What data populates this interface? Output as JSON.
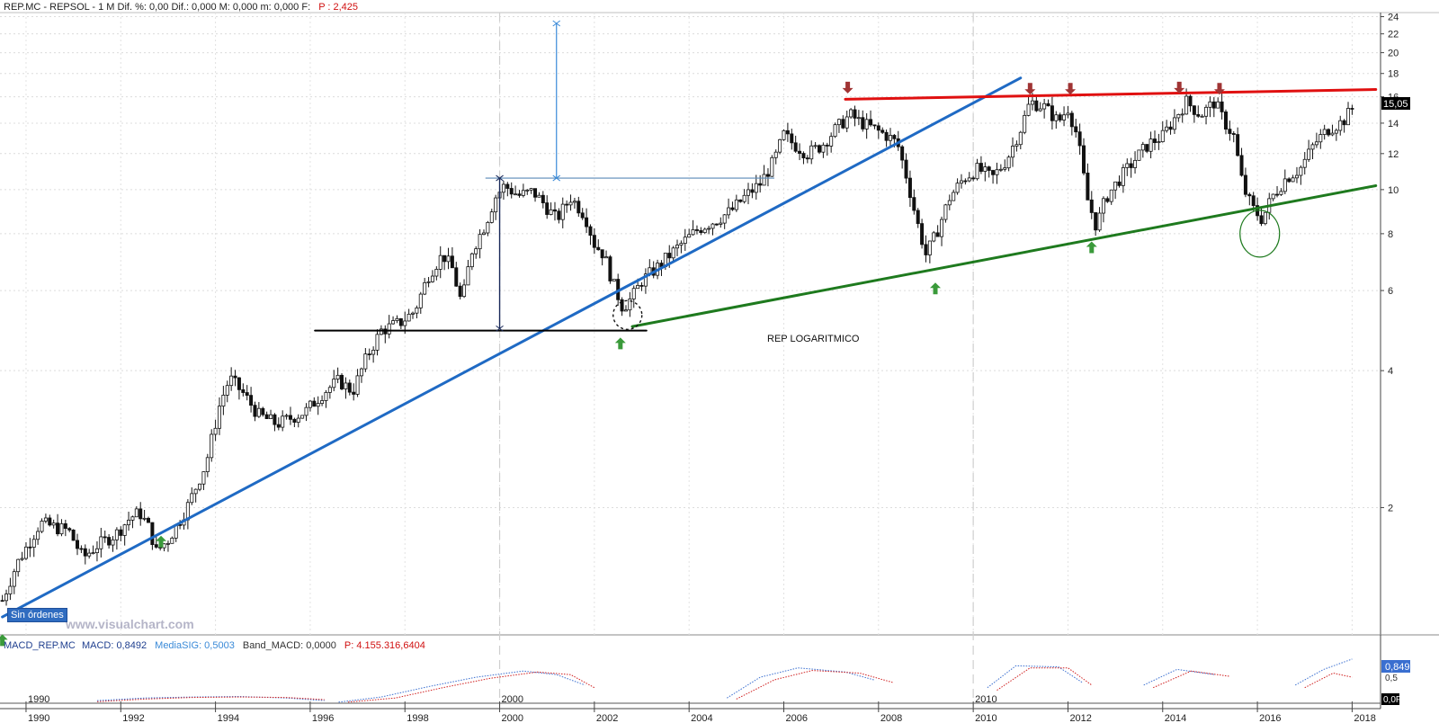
{
  "header": {
    "ticker_line": "REP.MC - REPSOL - 1 M  Dif. %: 0,00  Dif.: 0,000  M: 0,000  m: 0,000  F:",
    "p_label": "P : 2,425"
  },
  "annotation_text": "REP LOGARITMICO",
  "watermark": "www.visualchart.com",
  "orders_button": "Sin órdenes",
  "last_price_label": "15,05",
  "macd_header": {
    "name": "MACD_REP.MC",
    "macd": "MACD: 0,8492",
    "sig": "MediaSIG: 0,5003",
    "band": "Band_MACD: 0,0000",
    "p": "P: 4.155.316,6404"
  },
  "macd_value_labels": [
    "0,849",
    "0,5",
    "0,0F"
  ],
  "macd_decade_labels": [
    {
      "label": "1990",
      "year": 1990
    },
    {
      "label": "2000",
      "year": 2000
    },
    {
      "label": "2010",
      "year": 2010
    }
  ],
  "colors": {
    "blue_trend": "#1f6ac4",
    "green_trend": "#1e7a1e",
    "red_resistance": "#e01010",
    "support_black": "#000000",
    "arrow_up": "#3a9a3a",
    "arrow_down": "#a03434",
    "macd_blue": "#3a6fd0",
    "macd_red": "#d02020"
  },
  "chart_data": {
    "type": "candlestick",
    "scale": "log",
    "x_range": [
      1989.45,
      2018.6
    ],
    "ylim": [
      1.05,
      24.5
    ],
    "y_ticks": [
      {
        "value": 2,
        "label": "2"
      },
      {
        "value": 4,
        "label": "4"
      },
      {
        "value": 6,
        "label": "6"
      },
      {
        "value": 8,
        "label": "8"
      },
      {
        "value": 10,
        "label": "10"
      },
      {
        "value": 12,
        "label": "12"
      },
      {
        "value": 14,
        "label": "14"
      },
      {
        "value": 16,
        "label": "16"
      },
      {
        "value": 18,
        "label": "18"
      },
      {
        "value": 20,
        "label": "20"
      },
      {
        "value": 22,
        "label": "22"
      },
      {
        "value": 24,
        "label": "24"
      }
    ],
    "x_ticks": [
      {
        "year": 1990,
        "label": "1990"
      },
      {
        "year": 1992,
        "label": "1992"
      },
      {
        "year": 1994,
        "label": "1994"
      },
      {
        "year": 1996,
        "label": "1996"
      },
      {
        "year": 1998,
        "label": "1998"
      },
      {
        "year": 2000,
        "label": "2000"
      },
      {
        "year": 2002,
        "label": "2002"
      },
      {
        "year": 2004,
        "label": "2004"
      },
      {
        "year": 2006,
        "label": "2006"
      },
      {
        "year": 2008,
        "label": "2008"
      },
      {
        "year": 2010,
        "label": "2010"
      },
      {
        "year": 2012,
        "label": "2012"
      },
      {
        "year": 2014,
        "label": "2014"
      },
      {
        "year": 2016,
        "label": "2016"
      },
      {
        "year": 2018,
        "label": "2018"
      }
    ],
    "decade_gridlines": [
      2000,
      2010
    ],
    "price_path": [
      [
        1989.5,
        1.25
      ],
      [
        1989.8,
        1.5
      ],
      [
        1990.3,
        1.85
      ],
      [
        1990.7,
        1.8
      ],
      [
        1990.9,
        1.78
      ],
      [
        1991.2,
        1.55
      ],
      [
        1991.5,
        1.65
      ],
      [
        1991.9,
        1.75
      ],
      [
        1992.2,
        1.9
      ],
      [
        1992.4,
        1.95
      ],
      [
        1992.6,
        1.8
      ],
      [
        1992.75,
        1.6
      ],
      [
        1993.0,
        1.7
      ],
      [
        1993.4,
        2.0
      ],
      [
        1993.8,
        2.5
      ],
      [
        1994.1,
        3.4
      ],
      [
        1994.3,
        3.85
      ],
      [
        1994.6,
        3.55
      ],
      [
        1994.9,
        3.2
      ],
      [
        1995.3,
        3.05
      ],
      [
        1995.6,
        3.15
      ],
      [
        1995.9,
        3.25
      ],
      [
        1996.3,
        3.6
      ],
      [
        1996.6,
        3.8
      ],
      [
        1996.9,
        3.6
      ],
      [
        1997.2,
        4.3
      ],
      [
        1997.5,
        4.9
      ],
      [
        1997.9,
        5.1
      ],
      [
        1998.2,
        5.4
      ],
      [
        1998.5,
        6.5
      ],
      [
        1998.8,
        7.2
      ],
      [
        1999.0,
        6.7
      ],
      [
        1999.2,
        5.6
      ],
      [
        1999.4,
        7.3
      ],
      [
        1999.7,
        8.4
      ],
      [
        1999.9,
        9.6
      ],
      [
        2000.1,
        10.2
      ],
      [
        2000.4,
        9.7
      ],
      [
        2000.7,
        9.9
      ],
      [
        2000.9,
        9.4
      ],
      [
        2001.2,
        8.6
      ],
      [
        2001.5,
        9.6
      ],
      [
        2001.8,
        8.8
      ],
      [
        2002.0,
        7.6
      ],
      [
        2002.2,
        7.2
      ],
      [
        2002.4,
        6.2
      ],
      [
        2002.6,
        5.5
      ],
      [
        2002.8,
        5.8
      ],
      [
        2003.0,
        6.3
      ],
      [
        2003.3,
        6.7
      ],
      [
        2003.6,
        7.2
      ],
      [
        2003.9,
        7.7
      ],
      [
        2004.2,
        8.2
      ],
      [
        2004.6,
        8.6
      ],
      [
        2004.9,
        9.0
      ],
      [
        2005.2,
        9.7
      ],
      [
        2005.5,
        10.3
      ],
      [
        2005.8,
        11.6
      ],
      [
        2006.0,
        13.2
      ],
      [
        2006.2,
        12.6
      ],
      [
        2006.5,
        12.0
      ],
      [
        2006.8,
        12.5
      ],
      [
        2007.1,
        13.6
      ],
      [
        2007.4,
        14.6
      ],
      [
        2007.6,
        14.1
      ],
      [
        2007.9,
        13.6
      ],
      [
        2008.2,
        13.1
      ],
      [
        2008.4,
        12.6
      ],
      [
        2008.6,
        10.6
      ],
      [
        2008.8,
        8.6
      ],
      [
        2009.0,
        7.2
      ],
      [
        2009.2,
        7.9
      ],
      [
        2009.5,
        9.6
      ],
      [
        2009.8,
        10.6
      ],
      [
        2010.1,
        11.1
      ],
      [
        2010.4,
        10.6
      ],
      [
        2010.7,
        11.6
      ],
      [
        2011.0,
        13.6
      ],
      [
        2011.2,
        15.6
      ],
      [
        2011.5,
        15.2
      ],
      [
        2011.8,
        14.1
      ],
      [
        2012.0,
        15.1
      ],
      [
        2012.2,
        13.1
      ],
      [
        2012.4,
        9.6
      ],
      [
        2012.6,
        8.3
      ],
      [
        2012.8,
        9.6
      ],
      [
        2013.1,
        10.6
      ],
      [
        2013.4,
        11.6
      ],
      [
        2013.7,
        12.6
      ],
      [
        2014.0,
        13.1
      ],
      [
        2014.3,
        14.6
      ],
      [
        2014.5,
        15.6
      ],
      [
        2014.8,
        14.6
      ],
      [
        2015.1,
        15.6
      ],
      [
        2015.3,
        14.1
      ],
      [
        2015.5,
        13.1
      ],
      [
        2015.7,
        10.1
      ],
      [
        2015.9,
        9.1
      ],
      [
        2016.1,
        8.6
      ],
      [
        2016.3,
        9.6
      ],
      [
        2016.6,
        10.6
      ],
      [
        2016.9,
        11.1
      ],
      [
        2017.2,
        12.6
      ],
      [
        2017.5,
        13.6
      ],
      [
        2017.8,
        14.1
      ],
      [
        2018.0,
        15.05
      ]
    ],
    "trendlines": [
      {
        "name": "blue",
        "points": [
          [
            1989.5,
            1.15
          ],
          [
            2011.0,
            17.6
          ]
        ]
      },
      {
        "name": "green",
        "points": [
          [
            2002.8,
            5.0
          ],
          [
            2018.5,
            10.2
          ]
        ]
      },
      {
        "name": "red",
        "points": [
          [
            2007.3,
            15.8
          ],
          [
            2018.5,
            16.6
          ]
        ]
      },
      {
        "name": "support",
        "points": [
          [
            1996.1,
            4.9
          ],
          [
            2003.1,
            4.9
          ]
        ]
      }
    ],
    "measure_lines": {
      "horizontal": {
        "y": 10.6,
        "x_from": 1999.7,
        "x_to": 2005.8
      },
      "vertical_dark": {
        "x": 2000.0,
        "y_from": 4.95,
        "y_to": 10.6
      },
      "vertical_light": {
        "x": 2001.2,
        "y_from": 10.6,
        "y_to": 23.2
      }
    },
    "circles": [
      {
        "year": 2002.7,
        "value": 5.3
      },
      {
        "year": 2016.05,
        "value": 8.0
      }
    ],
    "up_arrows": [
      {
        "year": 1989.5,
        "value": 1.02
      },
      {
        "year": 1992.85,
        "value": 1.68
      },
      {
        "year": 2002.55,
        "value": 4.58
      },
      {
        "year": 2009.2,
        "value": 6.05
      },
      {
        "year": 2012.5,
        "value": 7.45
      }
    ],
    "down_arrows": [
      {
        "year": 2007.35,
        "value": 16.8
      },
      {
        "year": 2011.2,
        "value": 16.7
      },
      {
        "year": 2012.05,
        "value": 16.7
      },
      {
        "year": 2014.35,
        "value": 16.8
      },
      {
        "year": 2015.2,
        "value": 16.7
      }
    ],
    "macd_series": [
      {
        "name": "MACD",
        "segments": [
          [
            [
              1991.5,
              0.05
            ],
            [
              1992.5,
              0.1
            ],
            [
              1993.5,
              0.12
            ],
            [
              1994.5,
              0.13
            ],
            [
              1995.5,
              0.1
            ],
            [
              1996.3,
              0.05
            ]
          ],
          [
            [
              1996.6,
              0.02
            ],
            [
              1997.5,
              0.12
            ],
            [
              1998.5,
              0.32
            ],
            [
              1999.5,
              0.5
            ],
            [
              2000.5,
              0.62
            ],
            [
              2001.2,
              0.55
            ],
            [
              2001.8,
              0.35
            ]
          ],
          [
            [
              2004.8,
              0.1
            ],
            [
              2005.5,
              0.5
            ],
            [
              2006.3,
              0.68
            ],
            [
              2007.3,
              0.6
            ],
            [
              2007.9,
              0.45
            ]
          ],
          [
            [
              2010.3,
              0.3
            ],
            [
              2010.9,
              0.72
            ],
            [
              2011.8,
              0.7
            ],
            [
              2012.3,
              0.4
            ]
          ],
          [
            [
              2013.6,
              0.35
            ],
            [
              2014.3,
              0.65
            ],
            [
              2015.1,
              0.55
            ]
          ],
          [
            [
              2016.8,
              0.35
            ],
            [
              2017.4,
              0.65
            ],
            [
              2018.0,
              0.849
            ]
          ]
        ]
      },
      {
        "name": "MediaSIG",
        "segments": [
          [
            [
              1991.5,
              0.03
            ],
            [
              1992.5,
              0.08
            ],
            [
              1993.5,
              0.11
            ],
            [
              1994.5,
              0.12
            ],
            [
              1995.5,
              0.11
            ],
            [
              1996.3,
              0.07
            ]
          ],
          [
            [
              1996.8,
              0.02
            ],
            [
              1997.8,
              0.1
            ],
            [
              1998.8,
              0.3
            ],
            [
              1999.8,
              0.48
            ],
            [
              2000.8,
              0.6
            ],
            [
              2001.5,
              0.55
            ],
            [
              2002.0,
              0.3
            ]
          ],
          [
            [
              2005.0,
              0.08
            ],
            [
              2005.8,
              0.45
            ],
            [
              2006.6,
              0.63
            ],
            [
              2007.6,
              0.58
            ],
            [
              2008.3,
              0.4
            ]
          ],
          [
            [
              2010.5,
              0.25
            ],
            [
              2011.2,
              0.68
            ],
            [
              2012.0,
              0.68
            ],
            [
              2012.5,
              0.35
            ]
          ],
          [
            [
              2013.8,
              0.3
            ],
            [
              2014.6,
              0.62
            ],
            [
              2015.4,
              0.52
            ]
          ],
          [
            [
              2017.0,
              0.3
            ],
            [
              2017.6,
              0.58
            ],
            [
              2018.0,
              0.5003
            ]
          ]
        ]
      }
    ]
  }
}
